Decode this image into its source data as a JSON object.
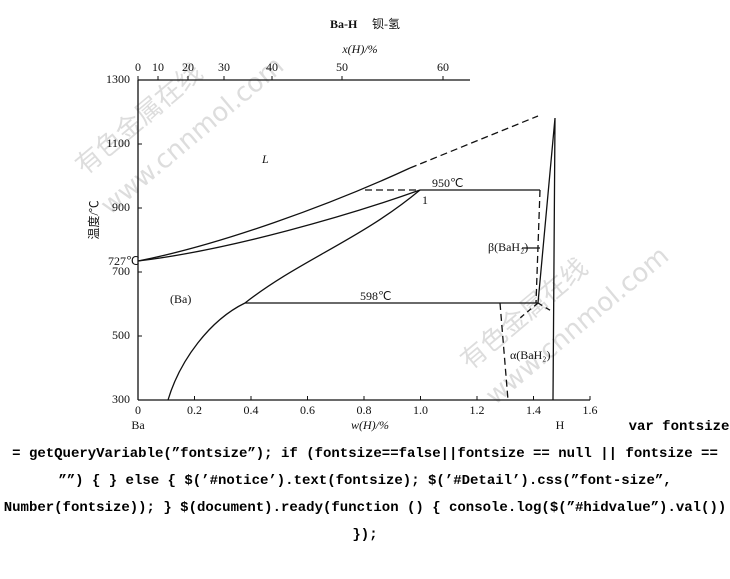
{
  "diagram": {
    "title": "Ba-H",
    "title_cn": "钡-氢",
    "top_axis": {
      "label": "x(H)/%",
      "ticks": [
        "0",
        "10",
        "20",
        "30",
        "40",
        "50",
        "60"
      ]
    },
    "left_axis": {
      "label": "温度/℃",
      "ticks": [
        "300",
        "500",
        "700",
        "900",
        "1100",
        "1300"
      ]
    },
    "bottom_axis": {
      "label": "w(H)/%",
      "ticks": [
        "0",
        "0.2",
        "0.4",
        "0.6",
        "0.8",
        "1.0",
        "1.2",
        "1.4",
        "1.6"
      ]
    },
    "end_labels": [
      "Ba",
      "H"
    ],
    "region_labels": [
      "L",
      "950℃",
      "1",
      "727℃",
      "β(BaH₂)",
      "(Ba)",
      "598℃",
      "α(BaH₂)"
    ],
    "watermarks": [
      "有色金属在线",
      "www.cnnmol.com",
      "有色金属在线",
      "www.cnnmol.com"
    ]
  },
  "code_text": "var fontsize = getQueryVariable(”fontsize”); if (fontsize==false||fontsize == null || fontsize == ””) { } else { $(’#notice’).text(fontsize); $(’#Detail’).css(”font-size”, Number(fontsize)); } $(document).ready(function () { console.log($(”#hidvalue”).val()) });"
}
